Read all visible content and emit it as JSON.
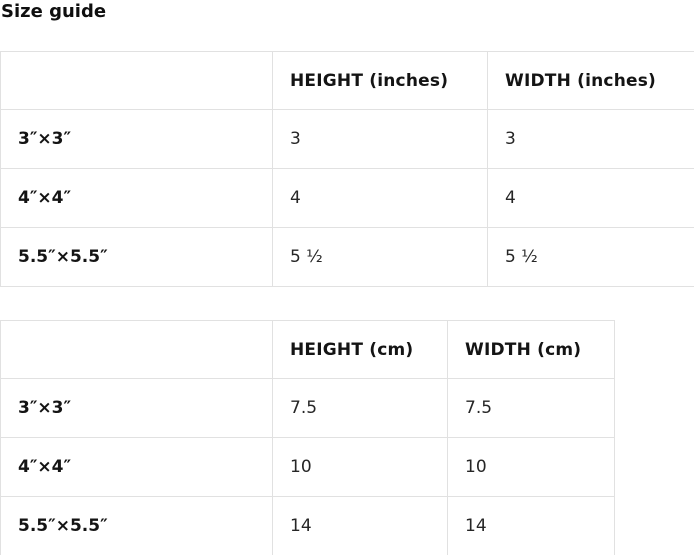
{
  "page": {
    "title": "Size guide"
  },
  "colors": {
    "background": "#ffffff",
    "border": "#e1e1e1",
    "heading_text": "#0f0f0f",
    "label_text": "#141414",
    "value_text": "#262626"
  },
  "tables": [
    {
      "name": "inches",
      "headers": [
        "",
        "HEIGHT (inches)",
        "WIDTH (inches)"
      ],
      "rows": [
        {
          "label": "3″×3″",
          "height": "3",
          "width": "3"
        },
        {
          "label": "4″×4″",
          "height": "4",
          "width": "4"
        },
        {
          "label": "5.5″×5.5″",
          "height": "5 ½",
          "width": "5 ½"
        }
      ]
    },
    {
      "name": "cm",
      "headers": [
        "",
        "HEIGHT (cm)",
        "WIDTH (cm)"
      ],
      "rows": [
        {
          "label": "3″×3″",
          "height": "7.5",
          "width": "7.5"
        },
        {
          "label": "4″×4″",
          "height": "10",
          "width": "10"
        },
        {
          "label": "5.5″×5.5″",
          "height": "14",
          "width": "14"
        }
      ]
    }
  ]
}
